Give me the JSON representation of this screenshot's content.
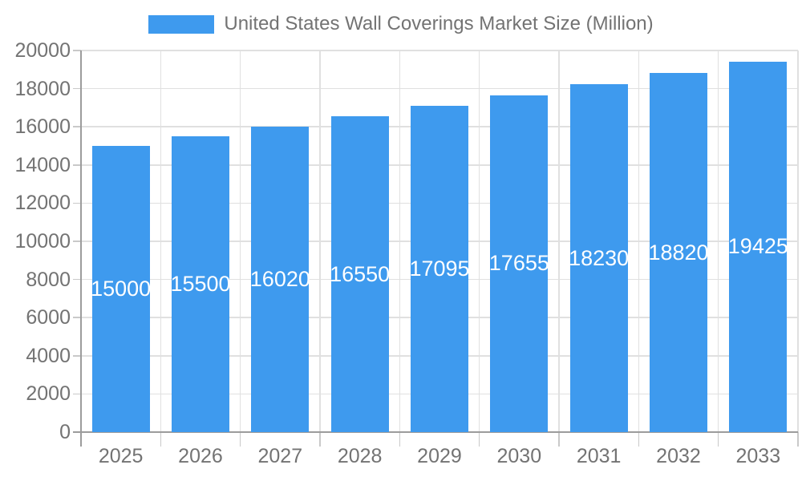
{
  "legend": {
    "label": "United States Wall Coverings Market Size (Million)",
    "position": "top"
  },
  "chart_data": {
    "type": "bar",
    "title": "United States Wall Coverings Market Size (Million)",
    "categories": [
      "2025",
      "2026",
      "2027",
      "2028",
      "2029",
      "2030",
      "2031",
      "2032",
      "2033"
    ],
    "values": [
      15000,
      15500,
      16020,
      16550,
      17095,
      17655,
      18230,
      18820,
      19425
    ],
    "xlabel": "",
    "ylabel": "",
    "ylim": [
      0,
      20000
    ],
    "ytick_step": 2000,
    "yticks": [
      0,
      2000,
      4000,
      6000,
      8000,
      10000,
      12000,
      14000,
      16000,
      18000,
      20000
    ],
    "grid": true,
    "legend_position": "top",
    "bar_labels_inside": true
  },
  "colors": {
    "bar_fill": "#3E9AEE",
    "bar_label": "#FFFFFF",
    "axis_text": "#737373",
    "axis_line": "#9C9C9C",
    "gridline": "#E0E0E0",
    "tick": "#C9C9C9",
    "background": "#FFFFFF"
  }
}
